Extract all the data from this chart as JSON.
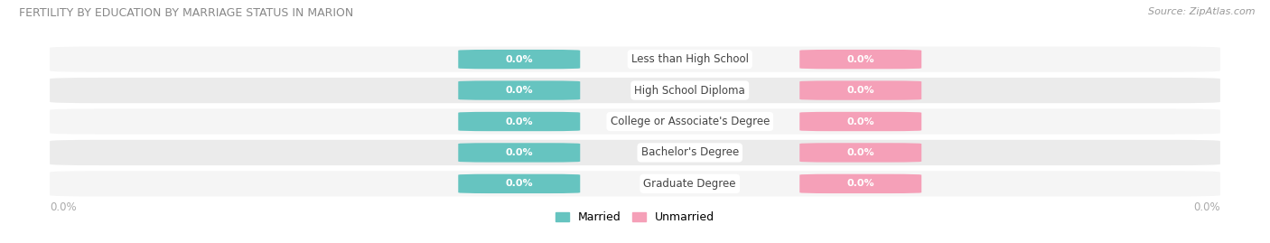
{
  "title": "FERTILITY BY EDUCATION BY MARRIAGE STATUS IN MARION",
  "source": "Source: ZipAtlas.com",
  "categories": [
    "Less than High School",
    "High School Diploma",
    "College or Associate's Degree",
    "Bachelor's Degree",
    "Graduate Degree"
  ],
  "married_values": [
    0.0,
    0.0,
    0.0,
    0.0,
    0.0
  ],
  "unmarried_values": [
    0.0,
    0.0,
    0.0,
    0.0,
    0.0
  ],
  "married_color": "#66c4c0",
  "unmarried_color": "#f5a0b8",
  "row_bg_color_odd": "#ebebeb",
  "row_bg_color_even": "#f5f5f5",
  "label_text": "0.0%",
  "bar_value_label": "0.0%",
  "legend_married": "Married",
  "legend_unmarried": "Unmarried",
  "background_color": "#ffffff",
  "title_color": "#888888",
  "source_color": "#999999",
  "axis_label_color": "#aaaaaa",
  "category_label_color": "#444444"
}
